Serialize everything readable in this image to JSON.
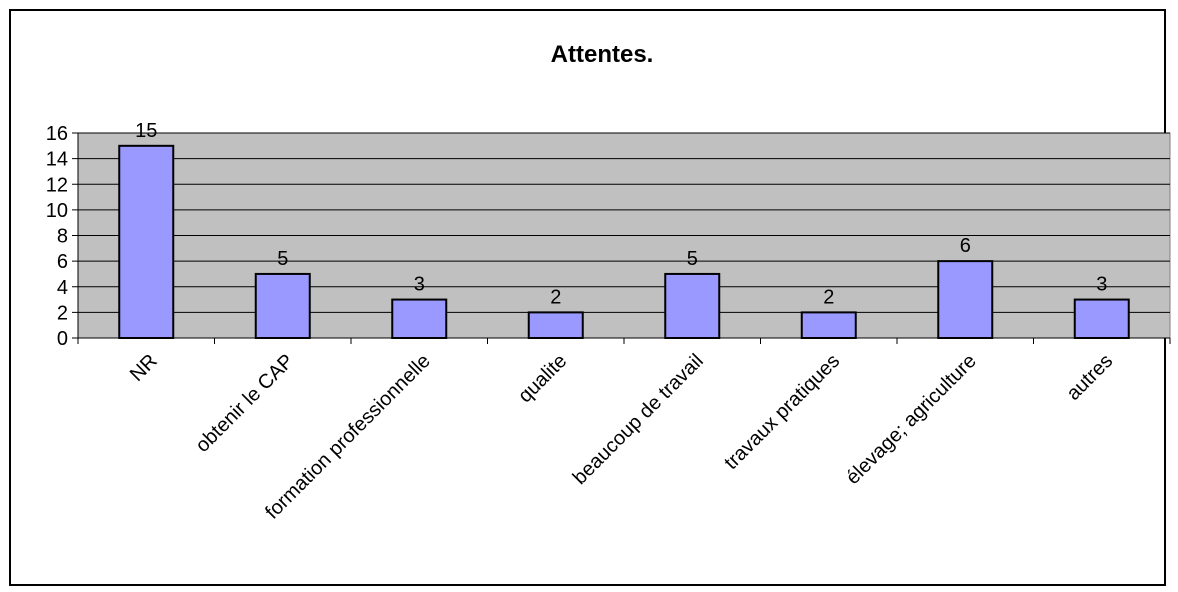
{
  "chart_data": {
    "type": "bar",
    "title": "Attentes.",
    "categories": [
      "NR",
      "obtenir le CAP",
      "formation professionnelle",
      "qualite",
      "beaucoup de travail",
      "travaux pratiques",
      "élevage; agriculture",
      "autres"
    ],
    "values": [
      15,
      5,
      3,
      2,
      5,
      2,
      6,
      3
    ],
    "ylim": [
      0,
      16
    ],
    "yticks": [
      "0",
      "2",
      "4",
      "6",
      "8",
      "10",
      "12",
      "14",
      "16"
    ],
    "grid": true,
    "legend": "none",
    "colors": {
      "bar_fill": "#9999ff",
      "bar_stroke": "#000000",
      "plot_bg": "#c0c0c0",
      "grid": "#000000"
    }
  }
}
